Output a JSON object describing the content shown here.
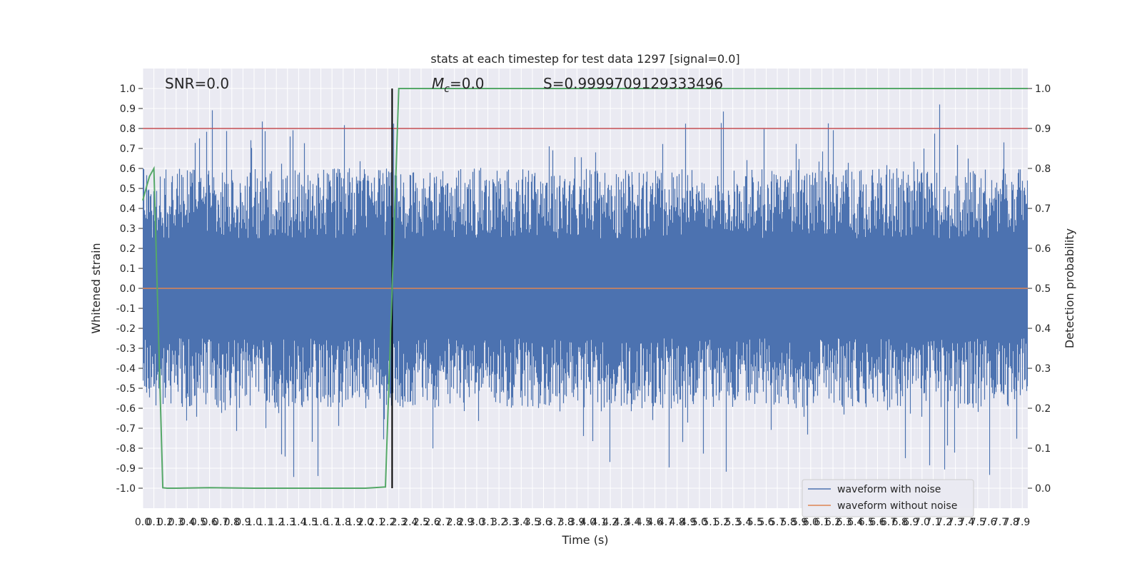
{
  "chart_data": {
    "type": "line",
    "title": "stats at each timestep for test data 1297 [signal=0.0]",
    "xlabel": "Time (s)",
    "ylabel": "Whitened strain",
    "ylabel_right": "Detection probability",
    "xlim": [
      0.0,
      7.95
    ],
    "ylim": [
      -1.1,
      1.1
    ],
    "ylim_right": [
      -0.05,
      1.05
    ],
    "x_ticks": [
      "0.0",
      "0.1",
      "0.2",
      "0.3",
      "0.4",
      "0.5",
      "0.6",
      "0.7",
      "0.8",
      "0.9",
      "1.0",
      "1.1",
      "1.2",
      "1.3",
      "1.4",
      "1.5",
      "1.6",
      "1.7",
      "1.8",
      "1.9",
      "2.0",
      "2.1",
      "2.2",
      "2.3",
      "2.4",
      "2.5",
      "2.6",
      "2.7",
      "2.8",
      "2.9",
      "3.0",
      "3.1",
      "3.2",
      "3.3",
      "3.4",
      "3.5",
      "3.6",
      "3.7",
      "3.8",
      "3.9",
      "4.0",
      "4.1",
      "4.2",
      "4.3",
      "4.4",
      "4.5",
      "4.6",
      "4.7",
      "4.8",
      "4.9",
      "5.0",
      "5.1",
      "5.2",
      "5.3",
      "5.4",
      "5.5",
      "5.6",
      "5.7",
      "5.8",
      "5.9",
      "6.0",
      "6.1",
      "6.2",
      "6.3",
      "6.4",
      "6.5",
      "6.6",
      "6.7",
      "6.8",
      "6.9",
      "7.0",
      "7.1",
      "7.2",
      "7.3",
      "7.4",
      "7.5",
      "7.6",
      "7.7",
      "7.8",
      "7.9"
    ],
    "y_ticks": [
      "1.0",
      "0.9",
      "0.8",
      "0.7",
      "0.6",
      "0.5",
      "0.4",
      "0.3",
      "0.2",
      "0.1",
      "0.0",
      "-0.1",
      "-0.2",
      "-0.3",
      "-0.4",
      "-0.5",
      "-0.6",
      "-0.7",
      "-0.8",
      "-0.9",
      "-1.0"
    ],
    "y_ticks_right": [
      "1.0",
      "0.9",
      "0.8",
      "0.7",
      "0.6",
      "0.5",
      "0.4",
      "0.3",
      "0.2",
      "0.1",
      "0.0"
    ],
    "annotations": {
      "snr": "SNR=0.0",
      "mc_symbol": "M",
      "mc_subscript": "c",
      "mc_value": "=0.0",
      "s": "S=0.9999709129333496"
    },
    "threshold": 0.9,
    "marker_time": 2.24,
    "grid": true,
    "legend_position": "lower-right",
    "series": [
      {
        "name": "waveform with noise",
        "color": "#4c72b0",
        "kind": "noise",
        "amplitude": 0.6,
        "peak_max": 1.0,
        "peak_min": -1.0
      },
      {
        "name": "waveform without noise",
        "color": "#dd8452",
        "kind": "flat",
        "values": [
          0.0,
          0.0
        ]
      },
      {
        "kind": "probability",
        "color": "#55a868",
        "x": [
          0.0,
          0.04,
          0.06,
          0.1,
          0.18,
          0.22,
          0.3,
          0.6,
          1.0,
          1.5,
          2.0,
          2.18,
          2.24,
          2.3,
          7.95
        ],
        "values": [
          0.72,
          0.76,
          0.78,
          0.8,
          0.001,
          0.0,
          0.0,
          0.0015,
          0.0,
          0.0,
          0.0,
          0.003,
          0.5,
          1.0,
          1.0
        ]
      },
      {
        "kind": "threshold",
        "color": "#c44e52"
      },
      {
        "kind": "marker",
        "color": "#000000"
      }
    ]
  }
}
